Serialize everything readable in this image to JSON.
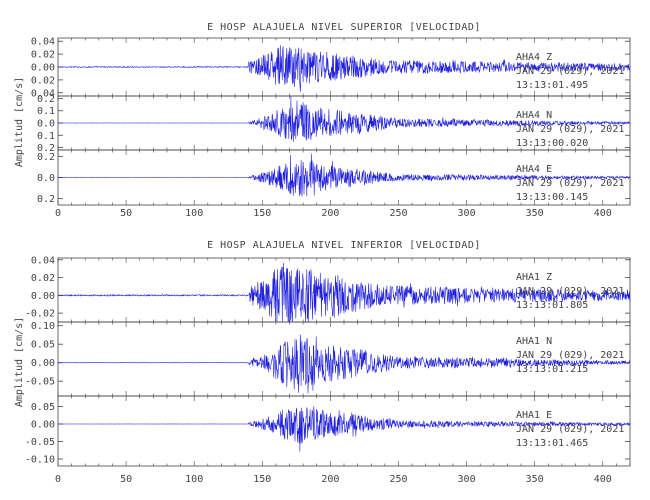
{
  "panels": [
    {
      "title": "E HOSP ALAJUELA NIVEL SUPERIOR [VELOCIDAD]",
      "ylabel": "Amplitud [cm/s]",
      "traces": [
        {
          "station": "AHA4",
          "channel": "Z",
          "date": "JAN 29 (029), 2021",
          "time": "13:13:01.495",
          "yticks": [
            "0.04",
            "0.02",
            "0.00",
            "0.02",
            "0.04"
          ],
          "ytick_values": [
            0.04,
            0.02,
            0.0,
            -0.02,
            -0.04
          ],
          "ylim": [
            -0.045,
            0.045
          ],
          "peak": 0.04
        },
        {
          "station": "AHA4",
          "channel": "N",
          "date": "JAN 29 (029), 2021",
          "time": "13:13:00.020",
          "yticks": [
            "0.2",
            "0.1",
            "0.0",
            "0.1",
            "0.2"
          ],
          "ytick_values": [
            0.2,
            0.1,
            0.0,
            -0.1,
            -0.2
          ],
          "ylim": [
            -0.22,
            0.22
          ],
          "peak": 0.21
        },
        {
          "station": "AHA4",
          "channel": "E",
          "date": "JAN 29 (029), 2021",
          "time": "13:13:00.145",
          "yticks": [
            "0.2",
            "0.0",
            "0.2"
          ],
          "ytick_values": [
            0.2,
            0.0,
            -0.2
          ],
          "ylim": [
            -0.26,
            0.26
          ],
          "peak": 0.23
        }
      ]
    },
    {
      "title": "E HOSP ALAJUELA NIVEL INFERIOR [VELOCIDAD]",
      "ylabel": "Amplitud [cm/s]",
      "traces": [
        {
          "station": "AHA1",
          "channel": "Z",
          "date": "JAN 29 (029), 2021",
          "time": "13:13:01.805",
          "yticks": [
            "0.04",
            "0.02",
            "0.00",
            "-0.02"
          ],
          "ytick_values": [
            0.04,
            0.02,
            0.0,
            -0.02
          ],
          "ylim": [
            -0.03,
            0.042
          ],
          "peak": 0.042
        },
        {
          "station": "AHA1",
          "channel": "N",
          "date": "JAN 29 (029), 2021",
          "time": "13:13:01.215",
          "yticks": [
            "0.10",
            "0.05",
            "0.00",
            "-0.05"
          ],
          "ytick_values": [
            0.1,
            0.05,
            0.0,
            -0.05
          ],
          "ylim": [
            -0.09,
            0.11
          ],
          "peak": 0.095
        },
        {
          "station": "AHA1",
          "channel": "E",
          "date": "JAN 29 (029), 2021",
          "time": "13:13:01.465",
          "yticks": [
            "0.05",
            "0.00",
            "-0.05",
            "-0.10"
          ],
          "ytick_values": [
            0.05,
            0.0,
            -0.05,
            -0.1
          ],
          "ylim": [
            -0.12,
            0.08
          ],
          "peak": 0.075
        }
      ]
    }
  ],
  "chart_data": [
    {
      "type": "line",
      "title": "E HOSP ALAJUELA NIVEL SUPERIOR [VELOCIDAD]",
      "xlabel": "",
      "ylabel": "Amplitud [cm/s]",
      "xlim": [
        0,
        420
      ],
      "xticks": [
        0,
        50,
        100,
        150,
        200,
        250,
        300,
        350,
        400
      ],
      "series": [
        {
          "name": "AHA4 Z",
          "onset_x": 140,
          "peak_abs": 0.04
        },
        {
          "name": "AHA4 N",
          "onset_x": 140,
          "peak_abs": 0.21
        },
        {
          "name": "AHA4 E",
          "onset_x": 140,
          "peak_abs": 0.23
        }
      ],
      "line_color": "#2020e0",
      "grid": false
    },
    {
      "type": "line",
      "title": "E HOSP ALAJUELA NIVEL INFERIOR [VELOCIDAD]",
      "xlabel": "",
      "ylabel": "Amplitud [cm/s]",
      "xlim": [
        0,
        420
      ],
      "xticks": [
        0,
        50,
        100,
        150,
        200,
        250,
        300,
        350,
        400
      ],
      "series": [
        {
          "name": "AHA1 Z",
          "onset_x": 140,
          "peak_abs": 0.042
        },
        {
          "name": "AHA1 N",
          "onset_x": 140,
          "peak_abs": 0.095
        },
        {
          "name": "AHA1 E",
          "onset_x": 140,
          "peak_abs": 0.1
        }
      ],
      "line_color": "#2020e0",
      "grid": false
    }
  ]
}
